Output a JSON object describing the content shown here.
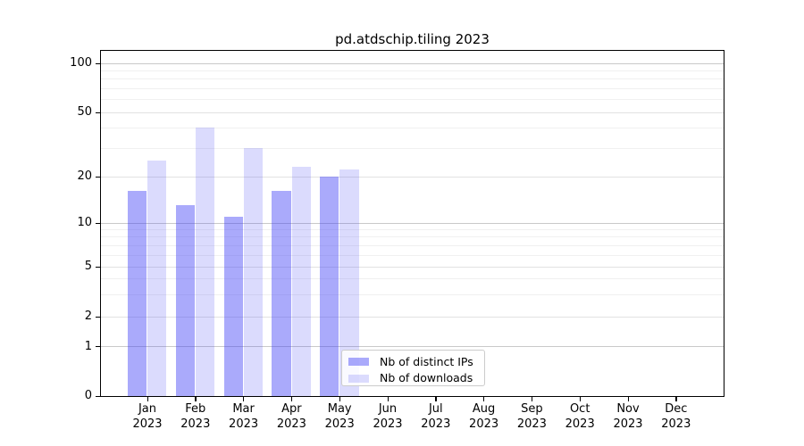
{
  "window": {
    "background": "#ffffff"
  },
  "chart_data": {
    "type": "bar",
    "title": "pd.atdschip.tiling 2023",
    "categories": [
      "Jan",
      "Feb",
      "Mar",
      "Apr",
      "May",
      "Jun",
      "Jul",
      "Aug",
      "Sep",
      "Oct",
      "Nov",
      "Dec"
    ],
    "year_label": "2023",
    "series": [
      {
        "name": "Nb of distinct IPs",
        "color": "rgba(62,62,245,0.44)",
        "values": [
          16,
          13,
          11,
          16,
          20,
          null,
          null,
          null,
          null,
          null,
          null,
          null
        ]
      },
      {
        "name": "Nb of downloads",
        "color": "rgba(62,62,245,0.19)",
        "values": [
          25,
          40,
          30,
          23,
          22,
          null,
          null,
          null,
          null,
          null,
          null,
          null
        ]
      }
    ],
    "xlabel": "",
    "ylabel": "",
    "ylim": [
      0,
      119
    ],
    "yscale": "symlog",
    "yticks": [
      0,
      1,
      2,
      5,
      10,
      20,
      50,
      100
    ],
    "decade_gridlines": [
      1,
      10,
      100
    ],
    "labeled_gridlines": [
      2,
      5,
      20,
      50
    ],
    "minor_gridlines": [
      3,
      4,
      6,
      7,
      8,
      9,
      30,
      40,
      60,
      70,
      80,
      90
    ],
    "grid": true,
    "legend_position": "lower center"
  },
  "colors": {
    "bar_ips": "rgba(62,62,245,0.44)",
    "bar_downloads": "rgba(62,62,245,0.19)",
    "grid_decade": "#c9c9c9",
    "grid_labeled": "#e2e2e2",
    "grid_minor": "#f0f0f0",
    "spine": "#000000"
  }
}
